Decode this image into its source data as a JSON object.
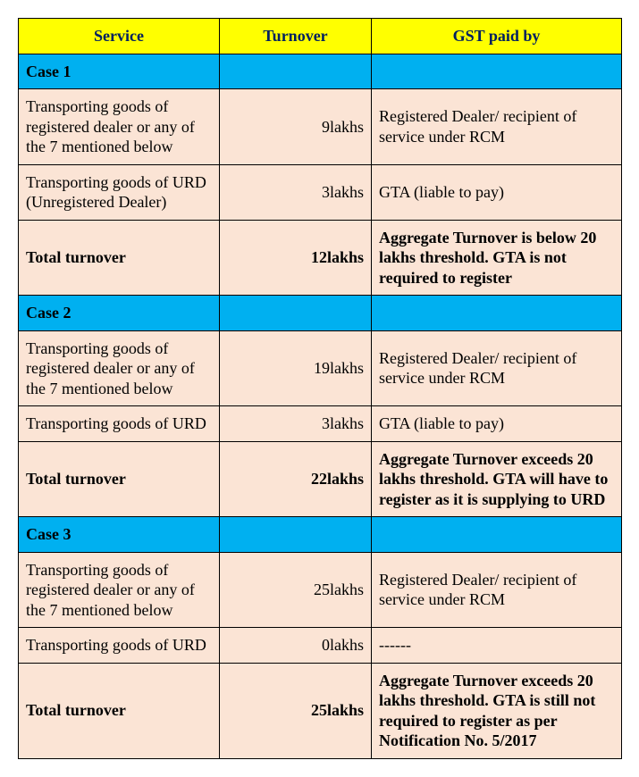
{
  "columns": {
    "service": "Service",
    "turnover": "Turnover",
    "gst": "GST paid by"
  },
  "colors": {
    "header_bg": "#ffff00",
    "header_text": "#002060",
    "case_bg": "#00b0f0",
    "body_bg": "#fbe4d5",
    "border": "#000000"
  },
  "cases": [
    {
      "label": "Case 1",
      "rows": [
        {
          "service": "Transporting goods of registered dealer or any of the 7 mentioned below",
          "turnover": "9lakhs",
          "gst": "Registered Dealer/ recipient of service under RCM"
        },
        {
          "service": "Transporting goods of URD (Unregistered Dealer)",
          "turnover": "3lakhs",
          "gst": "GTA (liable to pay)"
        }
      ],
      "total": {
        "service": "Total turnover",
        "turnover": "12lakhs",
        "gst": "Aggregate Turnover is below 20 lakhs threshold. GTA is not required to register"
      }
    },
    {
      "label": "Case 2",
      "rows": [
        {
          "service": "Transporting goods of registered dealer or any of the 7 mentioned below",
          "turnover": "19lakhs",
          "gst": "Registered Dealer/ recipient of service under RCM"
        },
        {
          "service": "Transporting goods of URD",
          "turnover": "3lakhs",
          "gst": "GTA (liable to pay)"
        }
      ],
      "total": {
        "service": "Total turnover",
        "turnover": "22lakhs",
        "gst": "Aggregate Turnover exceeds 20 lakhs threshold. GTA will have to register as it is supplying to URD"
      }
    },
    {
      "label": "Case 3",
      "rows": [
        {
          "service": "Transporting goods of registered dealer or any of the 7 mentioned below",
          "turnover": "25lakhs",
          "gst": "Registered Dealer/ recipient of service under RCM"
        },
        {
          "service": "Transporting goods of URD",
          "turnover": "0lakhs",
          "gst": "------"
        }
      ],
      "total": {
        "service": "Total turnover",
        "turnover": "25lakhs",
        "gst": "Aggregate Turnover exceeds 20 lakhs threshold. GTA is still not required to register as per Notification No. 5/2017"
      }
    }
  ]
}
